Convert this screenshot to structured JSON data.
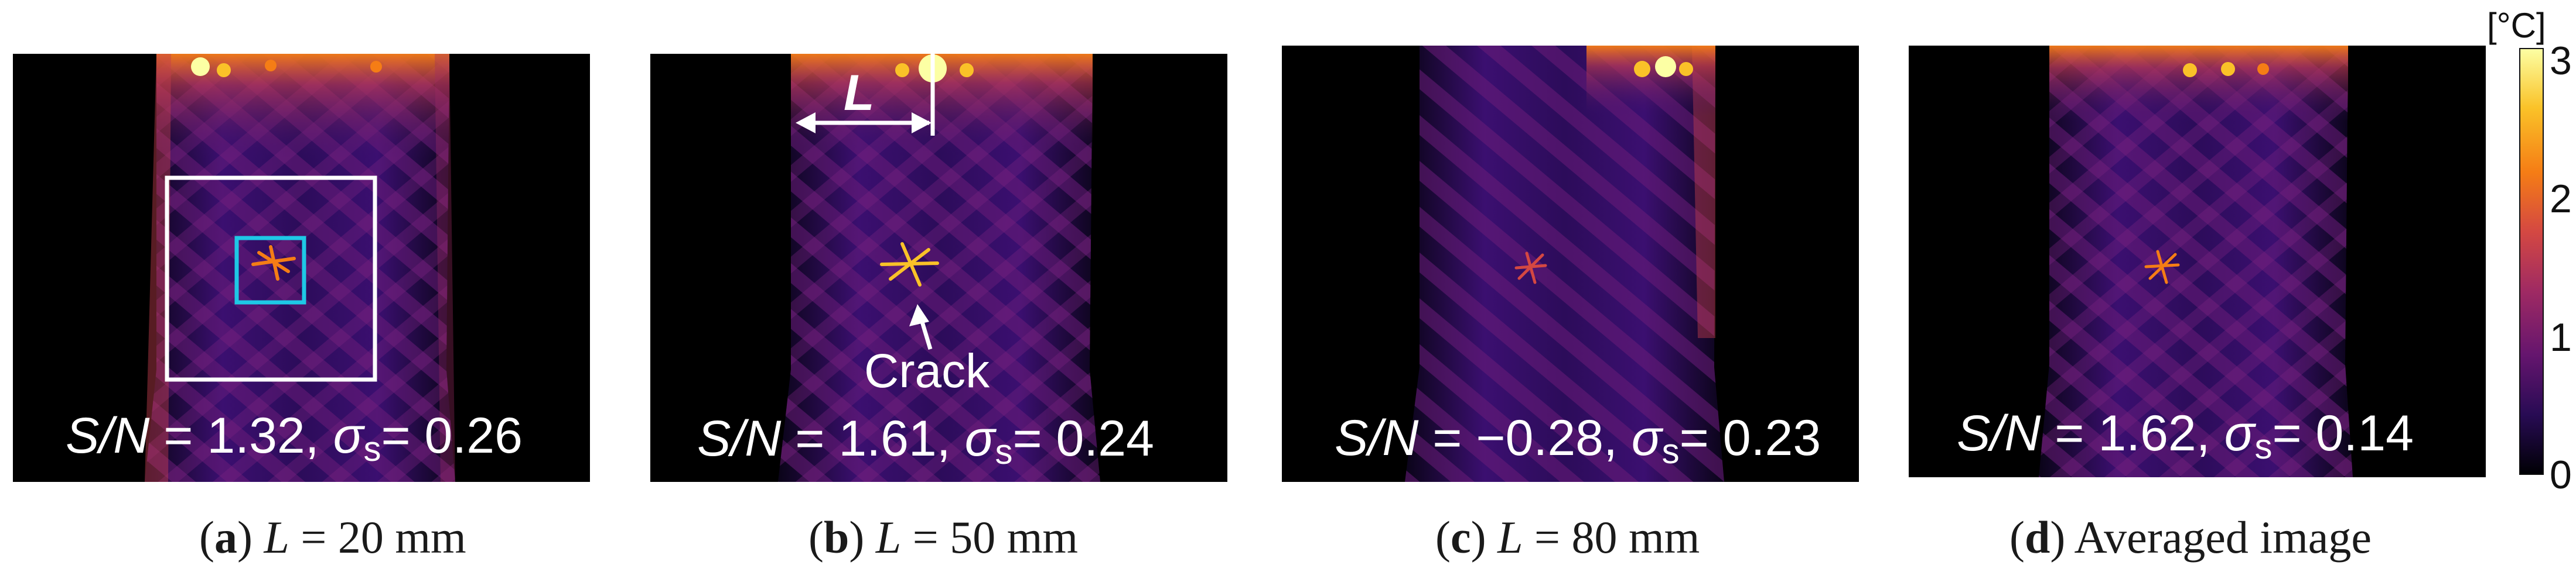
{
  "panels": [
    {
      "id": "a",
      "sn_label": "S/N",
      "sn_eq": " = 1.32, ",
      "sigma": "σ",
      "sigma_sub": "s",
      "sigma_eq": "= 0.26",
      "caption_letter": "a",
      "caption_var": "L",
      "caption_rest": " = 20 mm"
    },
    {
      "id": "b",
      "sn_label": "S/N",
      "sn_eq": " = 1.61, ",
      "sigma": "σ",
      "sigma_sub": "s",
      "sigma_eq": "= 0.24",
      "caption_letter": "b",
      "caption_var": "L",
      "caption_rest": " = 50 mm",
      "distance_label": "L",
      "crack_label": "Crack"
    },
    {
      "id": "c",
      "sn_label": "S/N",
      "sn_eq": " = −0.28, ",
      "sigma": "σ",
      "sigma_sub": "s",
      "sigma_eq": "= 0.23",
      "caption_letter": "c",
      "caption_var": "L",
      "caption_rest": " = 80 mm"
    },
    {
      "id": "d",
      "sn_label": "S/N",
      "sn_eq": " = 1.62, ",
      "sigma": "σ",
      "sigma_sub": "s",
      "sigma_eq": "= 0.14",
      "caption_letter": "d",
      "caption_rest": " Averaged image"
    }
  ],
  "colorbar": {
    "unit": "[°C]",
    "ticks": [
      "3",
      "2",
      "1",
      "0"
    ],
    "colormap": [
      "#000004",
      "#280b54",
      "#65156e",
      "#9f2a63",
      "#d44842",
      "#f57d15",
      "#fac228",
      "#fcffa4"
    ]
  },
  "colors": {
    "roi_outer": "#ffffff",
    "roi_inner": "#1ec8e6"
  }
}
